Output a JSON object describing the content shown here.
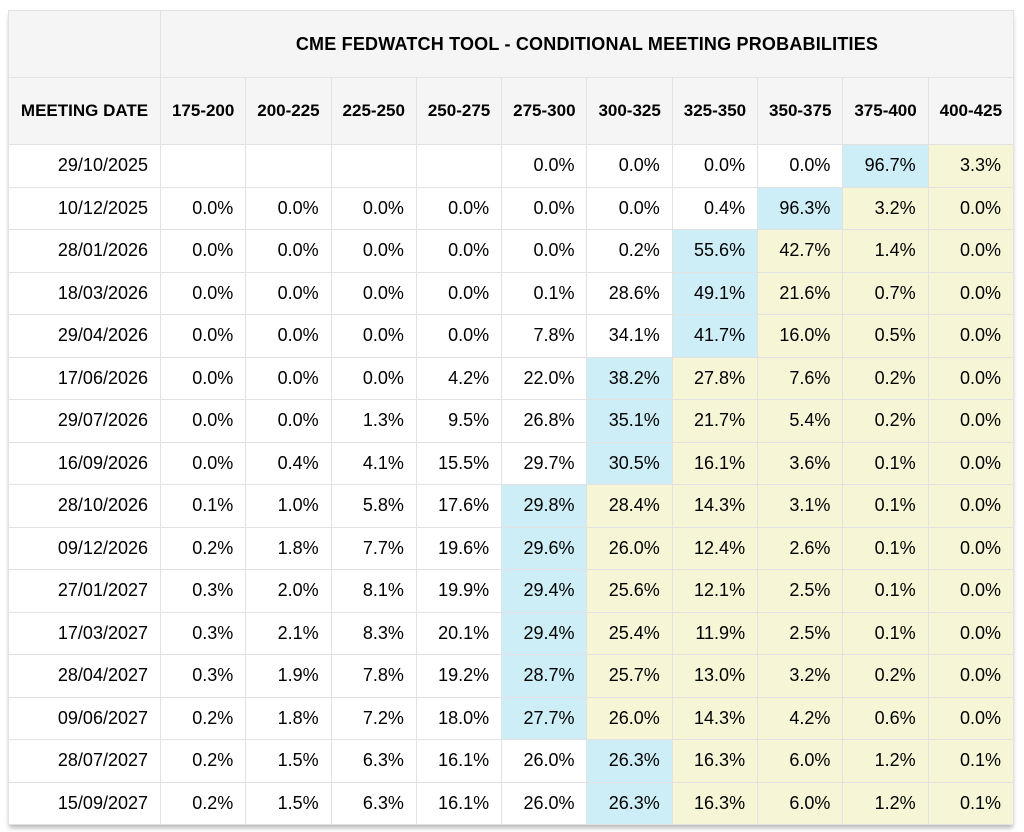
{
  "chart_data": {
    "type": "table",
    "title": "CME FEDWATCH TOOL - CONDITIONAL MEETING PROBABILITIES",
    "row_header_label": "MEETING DATE",
    "rate_ranges": [
      "175-200",
      "200-225",
      "225-250",
      "250-275",
      "275-300",
      "300-325",
      "325-350",
      "350-375",
      "375-400",
      "400-425"
    ],
    "style_legend": {
      "e": "empty",
      "w": "white",
      "b": "blue-highlight",
      "y": "yellow-highlight"
    },
    "rows": [
      {
        "date": "29/10/2025",
        "values": [
          "",
          "",
          "",
          "",
          "0.0%",
          "0.0%",
          "0.0%",
          "0.0%",
          "96.7%",
          "3.3%"
        ],
        "styles": [
          "e",
          "e",
          "e",
          "e",
          "w",
          "w",
          "w",
          "w",
          "b",
          "y"
        ]
      },
      {
        "date": "10/12/2025",
        "values": [
          "0.0%",
          "0.0%",
          "0.0%",
          "0.0%",
          "0.0%",
          "0.0%",
          "0.4%",
          "96.3%",
          "3.2%",
          "0.0%"
        ],
        "styles": [
          "w",
          "w",
          "w",
          "w",
          "w",
          "w",
          "w",
          "b",
          "y",
          "y"
        ]
      },
      {
        "date": "28/01/2026",
        "values": [
          "0.0%",
          "0.0%",
          "0.0%",
          "0.0%",
          "0.0%",
          "0.2%",
          "55.6%",
          "42.7%",
          "1.4%",
          "0.0%"
        ],
        "styles": [
          "w",
          "w",
          "w",
          "w",
          "w",
          "w",
          "b",
          "y",
          "y",
          "y"
        ]
      },
      {
        "date": "18/03/2026",
        "values": [
          "0.0%",
          "0.0%",
          "0.0%",
          "0.0%",
          "0.1%",
          "28.6%",
          "49.1%",
          "21.6%",
          "0.7%",
          "0.0%"
        ],
        "styles": [
          "w",
          "w",
          "w",
          "w",
          "w",
          "w",
          "b",
          "y",
          "y",
          "y"
        ]
      },
      {
        "date": "29/04/2026",
        "values": [
          "0.0%",
          "0.0%",
          "0.0%",
          "0.0%",
          "7.8%",
          "34.1%",
          "41.7%",
          "16.0%",
          "0.5%",
          "0.0%"
        ],
        "styles": [
          "w",
          "w",
          "w",
          "w",
          "w",
          "w",
          "b",
          "y",
          "y",
          "y"
        ]
      },
      {
        "date": "17/06/2026",
        "values": [
          "0.0%",
          "0.0%",
          "0.0%",
          "4.2%",
          "22.0%",
          "38.2%",
          "27.8%",
          "7.6%",
          "0.2%",
          "0.0%"
        ],
        "styles": [
          "w",
          "w",
          "w",
          "w",
          "w",
          "b",
          "y",
          "y",
          "y",
          "y"
        ]
      },
      {
        "date": "29/07/2026",
        "values": [
          "0.0%",
          "0.0%",
          "1.3%",
          "9.5%",
          "26.8%",
          "35.1%",
          "21.7%",
          "5.4%",
          "0.2%",
          "0.0%"
        ],
        "styles": [
          "w",
          "w",
          "w",
          "w",
          "w",
          "b",
          "y",
          "y",
          "y",
          "y"
        ]
      },
      {
        "date": "16/09/2026",
        "values": [
          "0.0%",
          "0.4%",
          "4.1%",
          "15.5%",
          "29.7%",
          "30.5%",
          "16.1%",
          "3.6%",
          "0.1%",
          "0.0%"
        ],
        "styles": [
          "w",
          "w",
          "w",
          "w",
          "w",
          "b",
          "y",
          "y",
          "y",
          "y"
        ]
      },
      {
        "date": "28/10/2026",
        "values": [
          "0.1%",
          "1.0%",
          "5.8%",
          "17.6%",
          "29.8%",
          "28.4%",
          "14.3%",
          "3.1%",
          "0.1%",
          "0.0%"
        ],
        "styles": [
          "w",
          "w",
          "w",
          "w",
          "b",
          "y",
          "y",
          "y",
          "y",
          "y"
        ]
      },
      {
        "date": "09/12/2026",
        "values": [
          "0.2%",
          "1.8%",
          "7.7%",
          "19.6%",
          "29.6%",
          "26.0%",
          "12.4%",
          "2.6%",
          "0.1%",
          "0.0%"
        ],
        "styles": [
          "w",
          "w",
          "w",
          "w",
          "b",
          "y",
          "y",
          "y",
          "y",
          "y"
        ]
      },
      {
        "date": "27/01/2027",
        "values": [
          "0.3%",
          "2.0%",
          "8.1%",
          "19.9%",
          "29.4%",
          "25.6%",
          "12.1%",
          "2.5%",
          "0.1%",
          "0.0%"
        ],
        "styles": [
          "w",
          "w",
          "w",
          "w",
          "b",
          "y",
          "y",
          "y",
          "y",
          "y"
        ]
      },
      {
        "date": "17/03/2027",
        "values": [
          "0.3%",
          "2.1%",
          "8.3%",
          "20.1%",
          "29.4%",
          "25.4%",
          "11.9%",
          "2.5%",
          "0.1%",
          "0.0%"
        ],
        "styles": [
          "w",
          "w",
          "w",
          "w",
          "b",
          "y",
          "y",
          "y",
          "y",
          "y"
        ]
      },
      {
        "date": "28/04/2027",
        "values": [
          "0.3%",
          "1.9%",
          "7.8%",
          "19.2%",
          "28.7%",
          "25.7%",
          "13.0%",
          "3.2%",
          "0.2%",
          "0.0%"
        ],
        "styles": [
          "w",
          "w",
          "w",
          "w",
          "b",
          "y",
          "y",
          "y",
          "y",
          "y"
        ]
      },
      {
        "date": "09/06/2027",
        "values": [
          "0.2%",
          "1.8%",
          "7.2%",
          "18.0%",
          "27.7%",
          "26.0%",
          "14.3%",
          "4.2%",
          "0.6%",
          "0.0%"
        ],
        "styles": [
          "w",
          "w",
          "w",
          "w",
          "b",
          "y",
          "y",
          "y",
          "y",
          "y"
        ]
      },
      {
        "date": "28/07/2027",
        "values": [
          "0.2%",
          "1.5%",
          "6.3%",
          "16.1%",
          "26.0%",
          "26.3%",
          "16.3%",
          "6.0%",
          "1.2%",
          "0.1%"
        ],
        "styles": [
          "w",
          "w",
          "w",
          "w",
          "w",
          "b",
          "y",
          "y",
          "y",
          "y"
        ]
      },
      {
        "date": "15/09/2027",
        "values": [
          "0.2%",
          "1.5%",
          "6.3%",
          "16.1%",
          "26.0%",
          "26.3%",
          "16.3%",
          "6.0%",
          "1.2%",
          "0.1%"
        ],
        "styles": [
          "w",
          "w",
          "w",
          "w",
          "w",
          "b",
          "y",
          "y",
          "y",
          "y"
        ]
      }
    ]
  },
  "colors": {
    "highlight_blue": "#cdeef7",
    "highlight_yellow": "#f6f6d7",
    "header_background": "#f5f5f5",
    "border": "#e2e2e2"
  }
}
